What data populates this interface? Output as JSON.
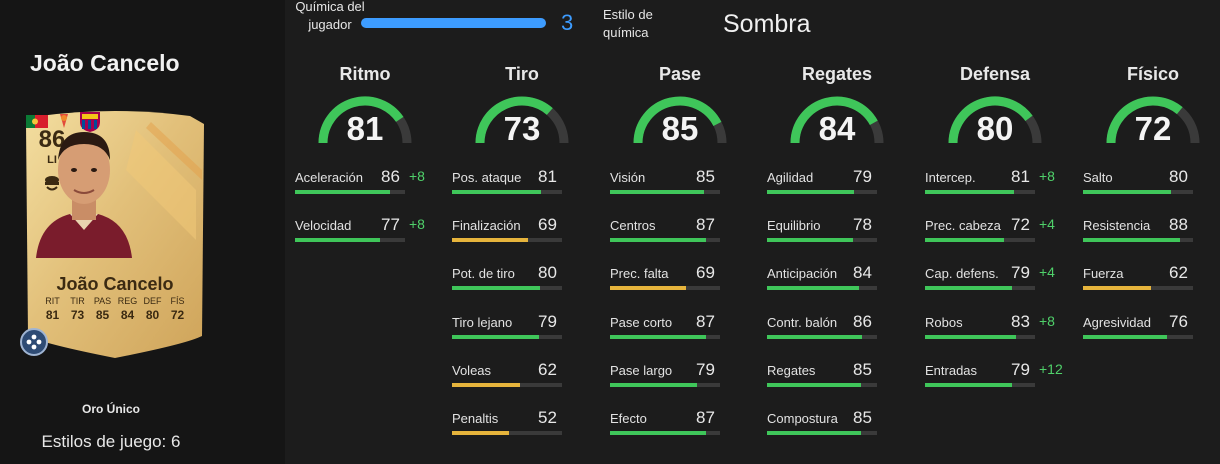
{
  "player": {
    "name": "João Cancelo",
    "card_type": "Oro Único",
    "playstyles_text": "Estilos de juego: 6"
  },
  "card": {
    "overall": "86",
    "position": "LI",
    "name": "João Cancelo",
    "stats": [
      {
        "label": "RIT",
        "value": "81"
      },
      {
        "label": "TIR",
        "value": "73"
      },
      {
        "label": "PAS",
        "value": "85"
      },
      {
        "label": "REG",
        "value": "84"
      },
      {
        "label": "DEF",
        "value": "80"
      },
      {
        "label": "FÍS",
        "value": "72"
      }
    ]
  },
  "chemistry": {
    "label": "Química del jugador",
    "value": "3",
    "max": 3,
    "style_label": "Estilo de química",
    "style_value": "Sombra"
  },
  "colors": {
    "green": "#3fc65a",
    "yellow": "#e6b43c",
    "blue": "#3d9cff",
    "boost": "#4fd16a"
  },
  "categories": [
    {
      "name": "Ritmo",
      "value": "81",
      "stats": [
        {
          "label": "Aceleración",
          "value": "86",
          "boost": "+8"
        },
        {
          "label": "Velocidad",
          "value": "77",
          "boost": "+8"
        }
      ]
    },
    {
      "name": "Tiro",
      "value": "73",
      "stats": [
        {
          "label": "Pos. ataque",
          "value": "81",
          "boost": ""
        },
        {
          "label": "Finalización",
          "value": "69",
          "boost": ""
        },
        {
          "label": "Pot. de tiro",
          "value": "80",
          "boost": ""
        },
        {
          "label": "Tiro lejano",
          "value": "79",
          "boost": ""
        },
        {
          "label": "Voleas",
          "value": "62",
          "boost": ""
        },
        {
          "label": "Penaltis",
          "value": "52",
          "boost": ""
        }
      ]
    },
    {
      "name": "Pase",
      "value": "85",
      "stats": [
        {
          "label": "Visión",
          "value": "85",
          "boost": ""
        },
        {
          "label": "Centros",
          "value": "87",
          "boost": ""
        },
        {
          "label": "Prec. falta",
          "value": "69",
          "boost": ""
        },
        {
          "label": "Pase corto",
          "value": "87",
          "boost": ""
        },
        {
          "label": "Pase largo",
          "value": "79",
          "boost": ""
        },
        {
          "label": "Efecto",
          "value": "87",
          "boost": ""
        }
      ]
    },
    {
      "name": "Regates",
      "value": "84",
      "stats": [
        {
          "label": "Agilidad",
          "value": "79",
          "boost": ""
        },
        {
          "label": "Equilibrio",
          "value": "78",
          "boost": ""
        },
        {
          "label": "Anticipación",
          "value": "84",
          "boost": ""
        },
        {
          "label": "Contr. balón",
          "value": "86",
          "boost": ""
        },
        {
          "label": "Regates",
          "value": "85",
          "boost": ""
        },
        {
          "label": "Compostura",
          "value": "85",
          "boost": ""
        }
      ]
    },
    {
      "name": "Defensa",
      "value": "80",
      "stats": [
        {
          "label": "Intercep.",
          "value": "81",
          "boost": "+8"
        },
        {
          "label": "Prec. cabeza",
          "value": "72",
          "boost": "+4"
        },
        {
          "label": "Cap. defens.",
          "value": "79",
          "boost": "+4"
        },
        {
          "label": "Robos",
          "value": "83",
          "boost": "+8"
        },
        {
          "label": "Entradas",
          "value": "79",
          "boost": "+12"
        }
      ]
    },
    {
      "name": "Físico",
      "value": "72",
      "stats": [
        {
          "label": "Salto",
          "value": "80",
          "boost": ""
        },
        {
          "label": "Resistencia",
          "value": "88",
          "boost": ""
        },
        {
          "label": "Fuerza",
          "value": "62",
          "boost": ""
        },
        {
          "label": "Agresividad",
          "value": "76",
          "boost": ""
        }
      ]
    }
  ]
}
